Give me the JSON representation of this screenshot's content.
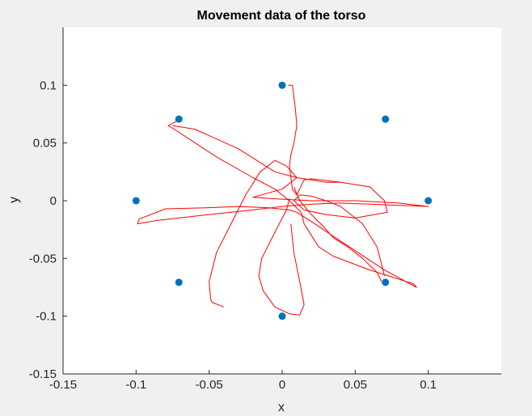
{
  "chart_data": {
    "type": "scatter",
    "title": "Movement data of the torso",
    "xlabel": "x",
    "ylabel": "y",
    "xlim": [
      -0.15,
      0.15
    ],
    "ylim": [
      -0.15,
      0.15
    ],
    "xticks": [
      -0.15,
      -0.1,
      -0.05,
      0,
      0.05,
      0.1
    ],
    "xtick_labels": [
      "-0.15",
      "-0.1",
      "-0.05",
      "0",
      "0.05",
      "0.1"
    ],
    "yticks": [
      -0.15,
      -0.1,
      -0.05,
      0,
      0.05,
      0.1
    ],
    "ytick_labels": [
      "-0.15",
      "-0.1",
      "-0.05",
      "0",
      "0.05",
      "0.1"
    ],
    "grid": false,
    "series": [
      {
        "kind": "scatter",
        "color": "#0072BD",
        "x": [
          0,
          0.0707,
          0.1,
          0.0707,
          0,
          -0.0707,
          -0.1,
          -0.0707
        ],
        "y": [
          0.1,
          0.0707,
          0,
          -0.0707,
          -0.1,
          -0.0707,
          0,
          0.0707
        ]
      },
      {
        "kind": "line",
        "color": "#ff0000",
        "x": [
          -0.0707,
          -0.078,
          -0.074,
          -0.045,
          -0.02,
          -0.005,
          0.005,
          0.013,
          0.015,
          0.02,
          0.025,
          0.035,
          0.06,
          0.09,
          0.092,
          0.07,
          0.04,
          0.02,
          0.01,
          0.005,
          -0.01,
          -0.03,
          -0.05,
          -0.08,
          -0.098,
          -0.099,
          -0.085,
          -0.05,
          -0.02,
          0.0,
          0.02,
          0.04,
          0.06,
          0.08,
          0.1,
          0.08,
          0.05,
          0.02,
          -0.01,
          -0.02,
          0.0,
          0.01,
          0.003,
          -0.005,
          -0.015,
          -0.025,
          -0.035,
          -0.045,
          -0.05,
          -0.049,
          -0.048,
          -0.04
        ],
        "y": [
          0.07,
          0.065,
          0.062,
          0.038,
          0.02,
          0.01,
          0.0,
          -0.01,
          -0.02,
          -0.03,
          -0.04,
          -0.048,
          -0.06,
          -0.072,
          -0.075,
          -0.06,
          -0.035,
          -0.018,
          -0.01,
          -0.008,
          -0.006,
          -0.005,
          -0.006,
          -0.007,
          -0.016,
          -0.02,
          -0.017,
          -0.012,
          -0.008,
          -0.005,
          -0.003,
          -0.002,
          -0.003,
          -0.004,
          -0.005,
          -0.002,
          0.0,
          0.0,
          0.002,
          0.003,
          0.01,
          0.02,
          0.03,
          0.035,
          0.025,
          0.005,
          -0.02,
          -0.045,
          -0.07,
          -0.085,
          -0.088,
          -0.092
        ]
      },
      {
        "kind": "line",
        "color": "#ff0000",
        "x": [
          -0.075,
          -0.06,
          -0.03,
          -0.005,
          0.01,
          0.02,
          0.03,
          0.04,
          0.06,
          0.07,
          0.072,
          0.05,
          0.03,
          0.015,
          0.008,
          0.012,
          0.02,
          0.03,
          0.04,
          0.055,
          0.065,
          0.07
        ],
        "y": [
          0.065,
          0.062,
          0.045,
          0.025,
          0.02,
          0.018,
          0.016,
          0.016,
          0.012,
          0.0,
          -0.01,
          -0.015,
          -0.012,
          -0.008,
          0.0,
          0.005,
          0.004,
          0.0,
          -0.005,
          -0.02,
          -0.04,
          -0.065
        ]
      },
      {
        "kind": "line",
        "color": "#ff0000",
        "x": [
          0.004,
          0.007,
          0.008,
          0.009,
          0.01,
          0.008,
          0.006,
          0.005,
          0.006,
          0.007,
          0.01,
          0.015,
          0.02,
          0.04
        ],
        "y": [
          0.1,
          0.1,
          0.09,
          0.08,
          0.065,
          0.05,
          0.04,
          0.03,
          0.02,
          0.01,
          0.005,
          0.018,
          0.019,
          0.016
        ]
      },
      {
        "kind": "line",
        "color": "#ff0000",
        "x": [
          0.005,
          0.003,
          -0.002,
          -0.008,
          -0.014,
          -0.016,
          -0.013,
          -0.005,
          0.005,
          0.012,
          0.015,
          0.012,
          0.008,
          0.006
        ],
        "y": [
          0.002,
          -0.008,
          -0.02,
          -0.035,
          -0.05,
          -0.065,
          -0.078,
          -0.092,
          -0.098,
          -0.099,
          -0.09,
          -0.07,
          -0.045,
          -0.02
        ]
      },
      {
        "kind": "line",
        "color": "#ff0000",
        "x": [
          0.008,
          0.012,
          0.02,
          0.028,
          0.035,
          0.045,
          0.055,
          0.065,
          0.068
        ],
        "y": [
          0.012,
          0.0,
          -0.012,
          -0.022,
          -0.032,
          -0.04,
          -0.05,
          -0.062,
          -0.07
        ]
      }
    ]
  }
}
